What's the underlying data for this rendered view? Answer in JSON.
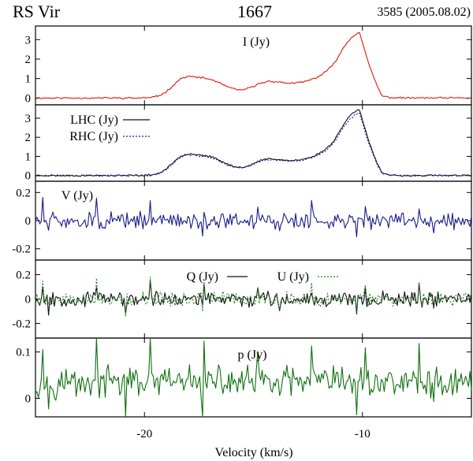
{
  "header": {
    "object": "RS Vir",
    "line": "1667",
    "epoch": "3585 (2005.08.02)"
  },
  "chart_data": {
    "type": "line",
    "title": "RS Vir 1667",
    "xlabel": "Velocity (km/s)",
    "xlim": [
      -25,
      -5
    ],
    "xticks": [
      -20,
      -10
    ],
    "xtick_labels": [
      "-20",
      "-10"
    ],
    "colors": {
      "I": "#e8140a",
      "LHC": "#111111",
      "RHC": "#1a1a9a",
      "V": "#1a1a8c",
      "Q": "#111111",
      "U": "#1f7f1f",
      "p": "#107010"
    },
    "panels": [
      {
        "key": "I",
        "label": "I (Jy)",
        "ylim": [
          -0.35,
          3.7
        ],
        "yticks": [
          0,
          1,
          2,
          3
        ],
        "ytick_labels": [
          "0",
          "1",
          "2",
          "3"
        ],
        "series": [
          {
            "name": "I (Jy)",
            "color": "#e8140a",
            "profile": "I",
            "noise": 0.035,
            "seed": 11
          }
        ]
      },
      {
        "key": "LR",
        "label": "",
        "ylim": [
          -0.3,
          3.7
        ],
        "yticks": [
          0,
          1,
          2,
          3
        ],
        "ytick_labels": [
          "0",
          "1",
          "2",
          "3"
        ],
        "legend": [
          {
            "text": "LHC (Jy)",
            "style": "solid",
            "color": "#111111"
          },
          {
            "text": "RHC (Jy)",
            "style": "dotted",
            "color": "#1a1a9a"
          }
        ],
        "series": [
          {
            "name": "LHC (Jy)",
            "color": "#111111",
            "profile": "L",
            "noise": 0.035,
            "seed": 23
          },
          {
            "name": "RHC (Jy)",
            "color": "#1a1a9a",
            "profile": "R",
            "noise": 0.035,
            "seed": 37,
            "dash": "2,2"
          }
        ]
      },
      {
        "key": "V",
        "label": "V (Jy)",
        "ylim": [
          -0.28,
          0.28
        ],
        "yticks": [
          -0.2,
          0,
          0.2
        ],
        "ytick_labels": [
          "-0.2",
          "0",
          "0.2"
        ],
        "series": [
          {
            "name": "V (Jy)",
            "color": "#1a1a8c",
            "profile": "zero",
            "noise": 0.045,
            "seed": 51
          }
        ]
      },
      {
        "key": "QU",
        "label": "",
        "ylim": [
          -0.32,
          0.32
        ],
        "yticks": [
          -0.2,
          0,
          0.2
        ],
        "ytick_labels": [
          "-0.2",
          "0",
          "0.2"
        ],
        "legend": [
          {
            "text": "Q (Jy)",
            "style": "solid",
            "color": "#111111"
          },
          {
            "text": "U (Jy)",
            "style": "dotted",
            "color": "#1f7f1f"
          }
        ],
        "series": [
          {
            "name": "Q (Jy)",
            "color": "#111111",
            "profile": "zero",
            "noise": 0.045,
            "seed": 67
          },
          {
            "name": "U (Jy)",
            "color": "#1f7f1f",
            "profile": "zero",
            "noise": 0.045,
            "seed": 79,
            "dash": "2,2"
          }
        ]
      },
      {
        "key": "p",
        "label": "p (Jy)",
        "ylim": [
          -0.04,
          0.13
        ],
        "yticks": [
          0,
          0.1
        ],
        "ytick_labels": [
          "0",
          "0.1"
        ],
        "series": [
          {
            "name": "p (Jy)",
            "color": "#107010",
            "profile": "p",
            "noise": 0.025,
            "seed": 97
          }
        ]
      }
    ]
  }
}
